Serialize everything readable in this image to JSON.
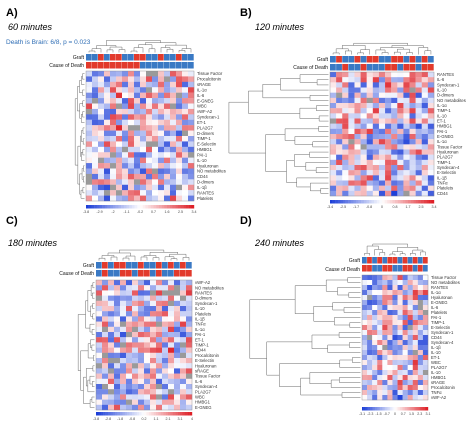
{
  "colors": {
    "low": "#1d3fd8",
    "mid": "#ffffff",
    "high": "#de1f26",
    "missing": "#9a9a9a",
    "blue_cell": "#3a79c4",
    "red_cell": "#e23a2c",
    "dendro": "#6a6a6a",
    "note": "#2f6eb5"
  },
  "chart_data": [
    {
      "type": "heatmap",
      "panel_label": "A)",
      "title": "60 minutes",
      "annotation": "Death is Brain: 6/8, p = 0.023",
      "track_labels": [
        "Graft",
        "Cause of Death"
      ],
      "track_colors": {
        "graft": [
          "b",
          "b",
          "r",
          "b",
          "r",
          "r",
          "b",
          "b",
          "r",
          "r",
          "b",
          "b",
          "r",
          "b",
          "b",
          "r",
          "b",
          "b"
        ],
        "cause": [
          "r",
          "r",
          "r",
          "r",
          "r",
          "r",
          "r",
          "r",
          "r",
          "b",
          "b",
          "b",
          "b",
          "b",
          "b",
          "b",
          "b",
          "b"
        ]
      },
      "rows": [
        "Tissue Factor",
        "Procalcitonin",
        "sRAGE",
        "IL-1α",
        "IL-6",
        "E-GNEG",
        "WBC",
        "vWF-A2",
        "Syndecan-1",
        "ET-1",
        "PLA2G7",
        "D-dimers",
        "TIMP-1",
        "E-Selectin",
        "HMBG1",
        "PAI-1",
        "IL-10",
        "Hyaluronan",
        "NO metabolites",
        "CD44",
        "D-dimers",
        "IL-1β",
        "RANTES",
        "Platelets"
      ],
      "n_cols": 18,
      "seed": 11,
      "missing_fraction": 0.06,
      "legend_ticks": [
        "-3.8",
        "-2.9",
        "-2",
        "-1.1",
        "-0.2",
        "0.7",
        "1.6",
        "2.5",
        "3.4"
      ]
    },
    {
      "type": "heatmap",
      "panel_label": "B)",
      "title": "120 minutes",
      "annotation": "",
      "track_labels": [
        "Graft",
        "Cause of Death"
      ],
      "track_colors": {
        "graft": [
          "b",
          "r",
          "b",
          "b",
          "r",
          "b",
          "r",
          "r",
          "b",
          "b",
          "r",
          "r",
          "b",
          "r",
          "b",
          "r",
          "b"
        ],
        "cause": [
          "b",
          "b",
          "r",
          "b",
          "b",
          "r",
          "b",
          "b",
          "b",
          "r",
          "r",
          "b",
          "r",
          "r",
          "b",
          "r",
          "r"
        ]
      },
      "rows": [
        "RANTES",
        "IL-6",
        "Syndecan-1",
        "IL-10",
        "D-dimers",
        "NO metabolites",
        "IL-1α",
        "TIMP-1",
        "IL-10",
        "ET-1",
        "HMBG1",
        "PAI-1",
        "E-GNEG",
        "IL-1α",
        "Tissue Factor",
        "Hyaluronan",
        "PLA2G7",
        "TIMP-1",
        "Syndecan-4",
        "E-Selectin",
        "IL-1β",
        "TNFα",
        "Platelets",
        "CD44"
      ],
      "n_cols": 17,
      "seed": 23,
      "missing_fraction": 0.01,
      "legend_ticks": [
        "-3.4",
        "-2.5",
        "-1.7",
        "-0.8",
        "0",
        "0.8",
        "1.7",
        "2.5",
        "3.4"
      ]
    },
    {
      "type": "heatmap",
      "panel_label": "C)",
      "title": "180 minutes",
      "annotation": "",
      "track_labels": [
        "Graft",
        "Cause of Death"
      ],
      "track_colors": {
        "graft": [
          "b",
          "r",
          "b",
          "r",
          "r",
          "b",
          "b",
          "r",
          "b",
          "b",
          "r",
          "b",
          "r",
          "b",
          "r",
          "b"
        ],
        "cause": [
          "b",
          "r",
          "b",
          "b",
          "r",
          "r",
          "b",
          "r",
          "r",
          "b",
          "r",
          "b",
          "b",
          "r",
          "r",
          "r"
        ]
      },
      "rows": [
        "vWF-A2",
        "NO metabolites",
        "RANTES",
        "D-dimers",
        "Syndecan-1",
        "IL-10",
        "Platelets",
        "IL-1β",
        "TNFα",
        "IL-1α",
        "PAI-1",
        "ET-1",
        "TIMP-1",
        "CD44",
        "Procalcitonin",
        "E-Selectin",
        "Hyaluronan",
        "sRAGE",
        "Tissue Factor",
        "IL-6",
        "Syndecan-4",
        "PLA2G7",
        "WBC",
        "HMBG1",
        "E-GNEG"
      ],
      "n_cols": 16,
      "seed": 37,
      "missing_fraction": 0.05,
      "legend_ticks": [
        "-3.8",
        "-2.8",
        "-1.8",
        "-0.8",
        "0.2",
        "1.1",
        "2.1",
        "3.1",
        "4"
      ]
    },
    {
      "type": "heatmap",
      "panel_label": "D)",
      "title": "240 minutes",
      "annotation": "",
      "track_labels": [
        "Graft",
        "Cause of Death"
      ],
      "track_colors": {
        "graft": [
          "b",
          "r",
          "b",
          "r",
          "b",
          "r",
          "r",
          "b",
          "r",
          "b",
          "r",
          "b",
          "r"
        ],
        "cause": [
          "r",
          "r",
          "b",
          "b",
          "r",
          "r",
          "b",
          "b",
          "r",
          "r",
          "b",
          "r",
          "b"
        ]
      },
      "rows": [
        "Tissue Factor",
        "NO metabolites",
        "RANTES",
        "IL-1α",
        "Hyaluronan",
        "E-GNEG",
        "IL-6",
        "Platelets",
        "PAI-1",
        "TIMP-1",
        "E-Selectin",
        "Syndecan-1",
        "CD44",
        "Syndecan-4",
        "IL-1β",
        "IL-10",
        "ET-1",
        "WBC",
        "PLA2G7",
        "IL-10",
        "HMBG1",
        "sRAGE",
        "Procalcitonin",
        "TNFα",
        "vWF-A2"
      ],
      "n_cols": 13,
      "seed": 53,
      "missing_fraction": 0.05,
      "legend_ticks": [
        "-3.1",
        "-2.3",
        "-1.5",
        "-0.7",
        "0",
        "0.7",
        "1.5",
        "2.3",
        "3.1"
      ]
    }
  ]
}
